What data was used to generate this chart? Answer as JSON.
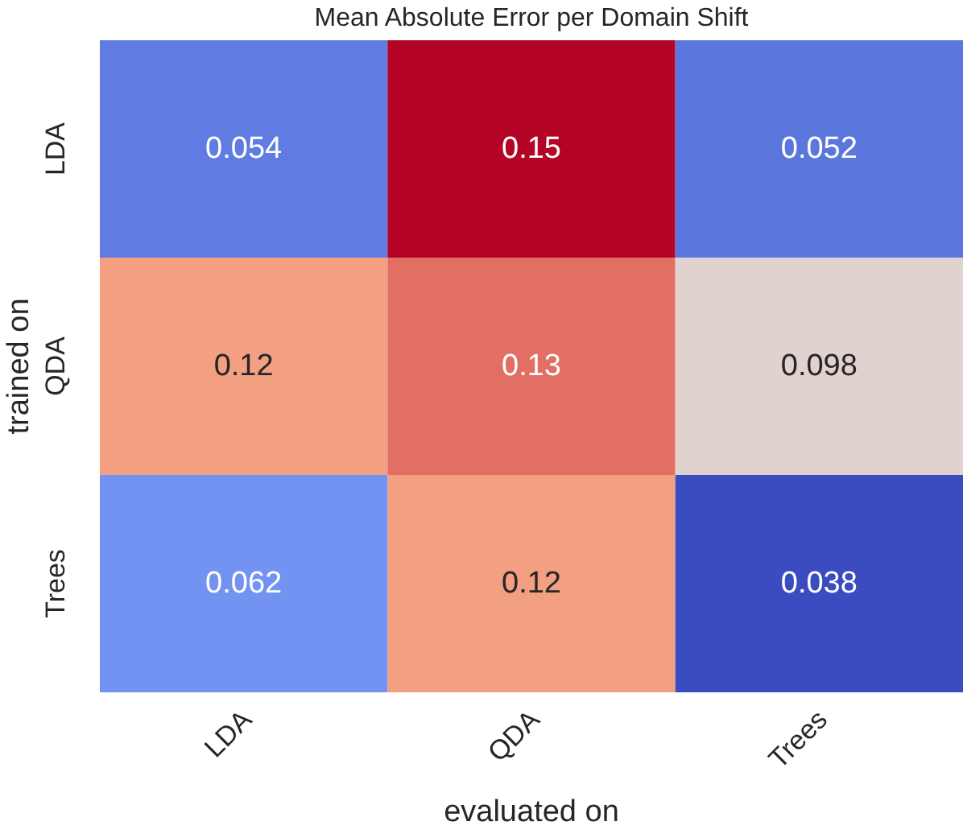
{
  "chart_data": {
    "type": "heatmap",
    "title": "Mean Absolute Error per Domain Shift",
    "xlabel": "evaluated on",
    "ylabel": "trained on",
    "categories": [
      "LDA",
      "QDA",
      "Trees"
    ],
    "y_categories": [
      "LDA",
      "QDA",
      "Trees"
    ],
    "cells": [
      [
        0.054,
        0.15,
        0.052
      ],
      [
        0.12,
        0.13,
        0.098
      ],
      [
        0.062,
        0.12,
        0.038
      ]
    ],
    "data_labels": true
  }
}
